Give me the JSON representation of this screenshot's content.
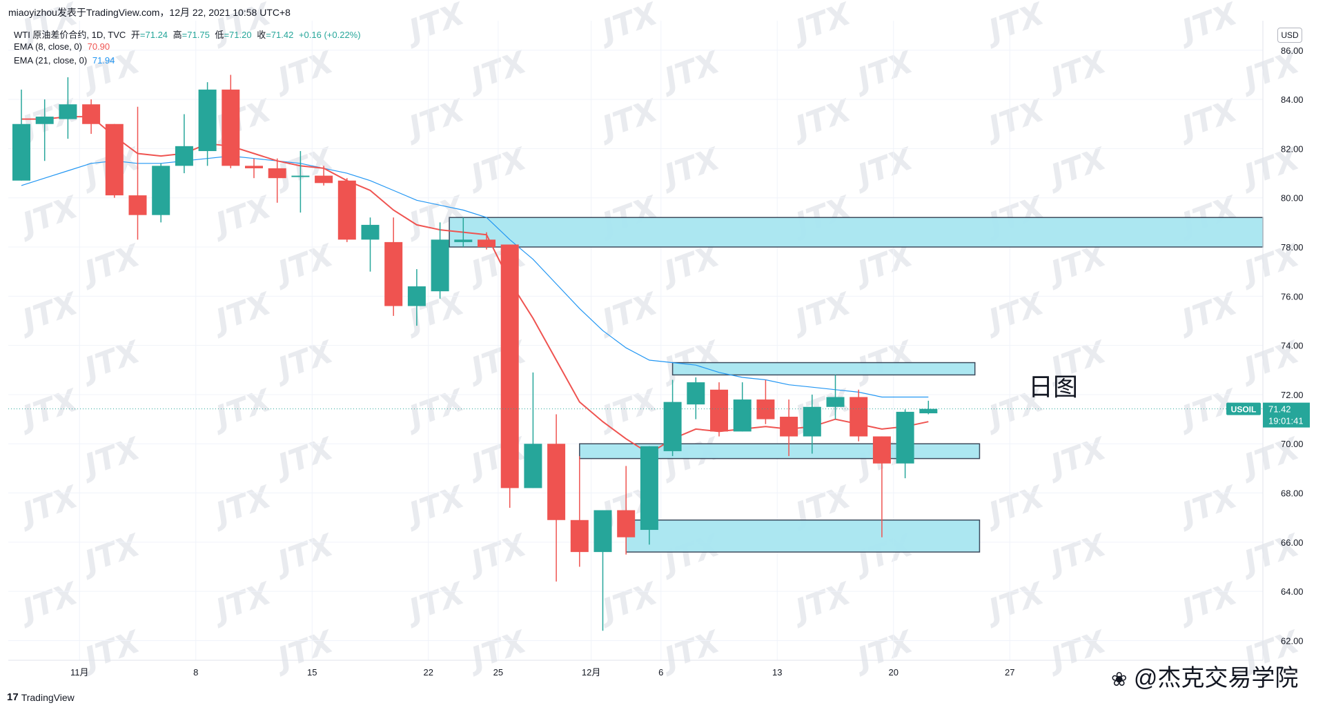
{
  "header": {
    "author_line": "miaoyizhou发表于TradingView.com，12月 22, 2021 10:58 UTC+8"
  },
  "legend": {
    "symbol": "WTI 原油差价合约, 1D, TVC",
    "open_label": "开",
    "open": "=71.24",
    "high_label": "高",
    "high": "=71.75",
    "low_label": "低",
    "low": "=71.20",
    "close_label": "收",
    "close": "=71.42",
    "change": "+0.16 (+0.22%)",
    "ema8_label": "EMA (8, close, 0)",
    "ema8_value": "70.90",
    "ema21_label": "EMA (21, close, 0)",
    "ema21_value": "71.94"
  },
  "currency_button": "USD",
  "price_tag": {
    "symbol": "USOIL",
    "price": "71.42",
    "countdown": "19:01:41"
  },
  "annotation_text": "日图",
  "footer": {
    "brand": "TradingView",
    "wechat": "@杰克交易学院"
  },
  "watermark": "JTX",
  "colors": {
    "up": "#26a69a",
    "down": "#ef5350",
    "ema8": "#ef5350",
    "ema21": "#2196f3",
    "zone_fill": "#a8e6f0",
    "zone_border": "#3c4a5c"
  },
  "chart_data": {
    "type": "candlestick",
    "y_axis_ticks": [
      "86.00",
      "84.00",
      "82.00",
      "80.00",
      "78.00",
      "76.00",
      "74.00",
      "72.00",
      "70.00",
      "68.00",
      "66.00",
      "64.00",
      "62.00"
    ],
    "ylim": [
      61.2,
      87.2
    ],
    "x_axis_ticks": [
      {
        "label": "11月",
        "index": 2.5
      },
      {
        "label": "8",
        "index": 7.5
      },
      {
        "label": "15",
        "index": 12.5
      },
      {
        "label": "22",
        "index": 17.5
      },
      {
        "label": "25",
        "index": 20.5
      },
      {
        "label": "12月",
        "index": 24.5
      },
      {
        "label": "6",
        "index": 27.5
      },
      {
        "label": "13",
        "index": 32.5
      },
      {
        "label": "20",
        "index": 37.5
      },
      {
        "label": "27",
        "index": 42.5
      }
    ],
    "candles": [
      {
        "o": 80.7,
        "h": 84.4,
        "l": 80.7,
        "c": 83.0
      },
      {
        "o": 83.0,
        "h": 84.0,
        "l": 81.5,
        "c": 83.3
      },
      {
        "o": 83.2,
        "h": 84.9,
        "l": 82.4,
        "c": 83.8
      },
      {
        "o": 83.8,
        "h": 84.0,
        "l": 82.6,
        "c": 83.0
      },
      {
        "o": 83.0,
        "h": 83.0,
        "l": 80.0,
        "c": 80.1
      },
      {
        "o": 80.1,
        "h": 83.7,
        "l": 78.3,
        "c": 79.3
      },
      {
        "o": 79.3,
        "h": 81.4,
        "l": 79.0,
        "c": 81.3
      },
      {
        "o": 81.3,
        "h": 83.4,
        "l": 81.0,
        "c": 82.1
      },
      {
        "o": 81.9,
        "h": 84.7,
        "l": 81.3,
        "c": 84.4
      },
      {
        "o": 84.4,
        "h": 85.0,
        "l": 81.2,
        "c": 81.3
      },
      {
        "o": 81.3,
        "h": 81.6,
        "l": 80.8,
        "c": 81.2
      },
      {
        "o": 81.2,
        "h": 81.6,
        "l": 79.8,
        "c": 80.8
      },
      {
        "o": 80.9,
        "h": 81.9,
        "l": 79.4,
        "c": 80.9
      },
      {
        "o": 80.9,
        "h": 81.3,
        "l": 80.5,
        "c": 80.6
      },
      {
        "o": 80.7,
        "h": 80.8,
        "l": 78.2,
        "c": 78.3
      },
      {
        "o": 78.3,
        "h": 79.2,
        "l": 77.0,
        "c": 78.9
      },
      {
        "o": 78.2,
        "h": 79.2,
        "l": 75.2,
        "c": 75.6
      },
      {
        "o": 75.6,
        "h": 77.1,
        "l": 74.8,
        "c": 76.4
      },
      {
        "o": 76.2,
        "h": 79.0,
        "l": 75.9,
        "c": 78.3
      },
      {
        "o": 78.2,
        "h": 79.2,
        "l": 78.0,
        "c": 78.3
      },
      {
        "o": 78.3,
        "h": 78.6,
        "l": 77.9,
        "c": 78.0
      },
      {
        "o": 78.1,
        "h": 78.1,
        "l": 67.4,
        "c": 68.2
      },
      {
        "o": 68.2,
        "h": 72.9,
        "l": 68.2,
        "c": 70.0
      },
      {
        "o": 70.0,
        "h": 71.2,
        "l": 64.4,
        "c": 66.9
      },
      {
        "o": 66.9,
        "h": 69.5,
        "l": 65.0,
        "c": 65.6
      },
      {
        "o": 65.6,
        "h": 67.3,
        "l": 62.4,
        "c": 67.3
      },
      {
        "o": 67.3,
        "h": 69.1,
        "l": 65.5,
        "c": 66.2
      },
      {
        "o": 66.5,
        "h": 69.9,
        "l": 65.9,
        "c": 69.9
      },
      {
        "o": 69.7,
        "h": 72.6,
        "l": 69.5,
        "c": 71.7
      },
      {
        "o": 71.6,
        "h": 72.7,
        "l": 71.0,
        "c": 72.5
      },
      {
        "o": 72.2,
        "h": 72.5,
        "l": 70.3,
        "c": 70.5
      },
      {
        "o": 70.5,
        "h": 72.5,
        "l": 70.5,
        "c": 71.8
      },
      {
        "o": 71.8,
        "h": 72.6,
        "l": 70.8,
        "c": 71.0
      },
      {
        "o": 71.1,
        "h": 71.8,
        "l": 69.5,
        "c": 70.3
      },
      {
        "o": 70.3,
        "h": 72.0,
        "l": 69.6,
        "c": 71.5
      },
      {
        "o": 71.5,
        "h": 72.8,
        "l": 71.0,
        "c": 71.9
      },
      {
        "o": 71.9,
        "h": 72.2,
        "l": 70.1,
        "c": 70.3
      },
      {
        "o": 70.3,
        "h": 70.3,
        "l": 66.2,
        "c": 69.2
      },
      {
        "o": 69.2,
        "h": 71.4,
        "l": 68.6,
        "c": 71.3
      },
      {
        "o": 71.24,
        "h": 71.75,
        "l": 71.2,
        "c": 71.42
      }
    ],
    "ema8": [
      83.2,
      83.2,
      83.3,
      83.3,
      82.5,
      81.8,
      81.7,
      81.8,
      82.2,
      82.1,
      81.8,
      81.5,
      81.3,
      81.2,
      80.7,
      80.3,
      79.5,
      78.9,
      78.7,
      78.6,
      78.5,
      76.6,
      75.1,
      73.4,
      71.7,
      70.9,
      70.2,
      69.6,
      70.2,
      70.6,
      70.5,
      70.6,
      70.7,
      70.6,
      70.7,
      71.0,
      70.8,
      70.6,
      70.7,
      70.9
    ],
    "ema21": [
      80.5,
      80.8,
      81.1,
      81.4,
      81.5,
      81.4,
      81.4,
      81.5,
      81.6,
      81.7,
      81.6,
      81.5,
      81.4,
      81.2,
      81.0,
      80.7,
      80.3,
      79.9,
      79.7,
      79.5,
      79.2,
      78.3,
      77.5,
      76.5,
      75.5,
      74.6,
      73.9,
      73.4,
      73.3,
      73.2,
      72.9,
      72.7,
      72.6,
      72.4,
      72.3,
      72.2,
      72.1,
      71.9,
      71.9,
      71.9
    ],
    "zones": [
      {
        "from_index": 18.4,
        "to_index": 54.1,
        "top": 79.2,
        "bottom": 78.0
      },
      {
        "from_index": 28.0,
        "to_index": 41.0,
        "top": 73.3,
        "bottom": 72.8
      },
      {
        "from_index": 24.0,
        "to_index": 41.2,
        "top": 70.0,
        "bottom": 69.4
      },
      {
        "from_index": 26.0,
        "to_index": 41.2,
        "top": 66.9,
        "bottom": 65.6
      }
    ],
    "last_price": 71.42
  }
}
